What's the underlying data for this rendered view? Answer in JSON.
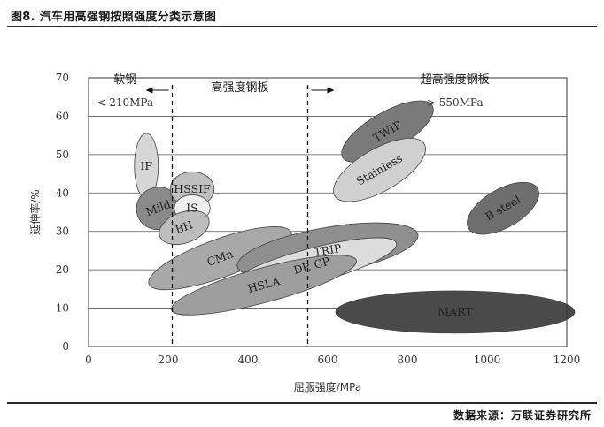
{
  "header": {
    "title": "图8. 汽车用高强钢按照强度分类示意图"
  },
  "footer": {
    "source": "数据来源：万联证券研究所"
  },
  "chart_data": {
    "type": "scatter",
    "subtype": "region-ellipses",
    "xlabel": "屈服强度/MPa",
    "ylabel": "延伸率/%",
    "xlim": [
      0,
      1200
    ],
    "ylim": [
      0,
      70
    ],
    "x_ticks": [
      "0",
      "200",
      "400",
      "600",
      "800",
      "1000",
      "1200"
    ],
    "y_ticks": [
      "0",
      "10",
      "20",
      "30",
      "40",
      "50",
      "60",
      "70"
    ],
    "grid": "horizontal",
    "regions": [
      {
        "name": "软钢",
        "range": "< 210MPa",
        "x_max": 210
      },
      {
        "name": "高强度钢板",
        "x_min": 210,
        "x_max": 550
      },
      {
        "name": "超高强度钢板",
        "range": "> 550MPa",
        "x_min": 550
      }
    ],
    "boundaries": [
      210,
      550
    ],
    "ellipses": [
      {
        "label": "IF",
        "cx": 145,
        "cy": 47,
        "rx": 30,
        "ry": 8.5,
        "angle": 0,
        "fill": "#d6d6d6"
      },
      {
        "label": "Mild",
        "cx": 175,
        "cy": 36,
        "rx": 55,
        "ry": 5.5,
        "angle": -20,
        "fill": "#8a8a8a"
      },
      {
        "label": "HSSIF",
        "cx": 260,
        "cy": 41,
        "rx": 55,
        "ry": 4.5,
        "angle": 0,
        "fill": "#bfbfbf"
      },
      {
        "label": "IS",
        "cx": 260,
        "cy": 36,
        "rx": 45,
        "ry": 3.5,
        "angle": 0,
        "fill": "#eeeeee"
      },
      {
        "label": "BH",
        "cx": 240,
        "cy": 31,
        "rx": 65,
        "ry": 4,
        "angle": -20,
        "fill": "#bdbdbd"
      },
      {
        "label": "CMn",
        "cx": 330,
        "cy": 23,
        "rx": 190,
        "ry": 5,
        "angle": -20,
        "fill": "#a8a8a8"
      },
      {
        "label": "TRIP",
        "cx": 600,
        "cy": 25,
        "rx": 230,
        "ry": 6,
        "angle": -10,
        "fill": "#8f8f8f"
      },
      {
        "label": "DP, CP",
        "cx": 560,
        "cy": 21,
        "rx": 220,
        "ry": 4.5,
        "angle": -15,
        "fill": "#dcdcdc"
      },
      {
        "label": "HSLA",
        "cx": 440,
        "cy": 16,
        "rx": 240,
        "ry": 4.5,
        "angle": -15,
        "fill": "#9e9e9e"
      },
      {
        "label": "MART",
        "cx": 920,
        "cy": 9,
        "rx": 300,
        "ry": 5.5,
        "angle": 0,
        "fill": "#4a4a4a"
      },
      {
        "label": "TWIP",
        "cx": 750,
        "cy": 56,
        "rx": 130,
        "ry": 5,
        "angle": -30,
        "fill": "#7a7a7a"
      },
      {
        "label": "Stainless",
        "cx": 730,
        "cy": 46,
        "rx": 130,
        "ry": 5.5,
        "angle": -30,
        "fill": "#d0d0d0"
      },
      {
        "label": "B steel",
        "cx": 1040,
        "cy": 36,
        "rx": 100,
        "ry": 5,
        "angle": -30,
        "fill": "#6e6e6e"
      }
    ]
  }
}
